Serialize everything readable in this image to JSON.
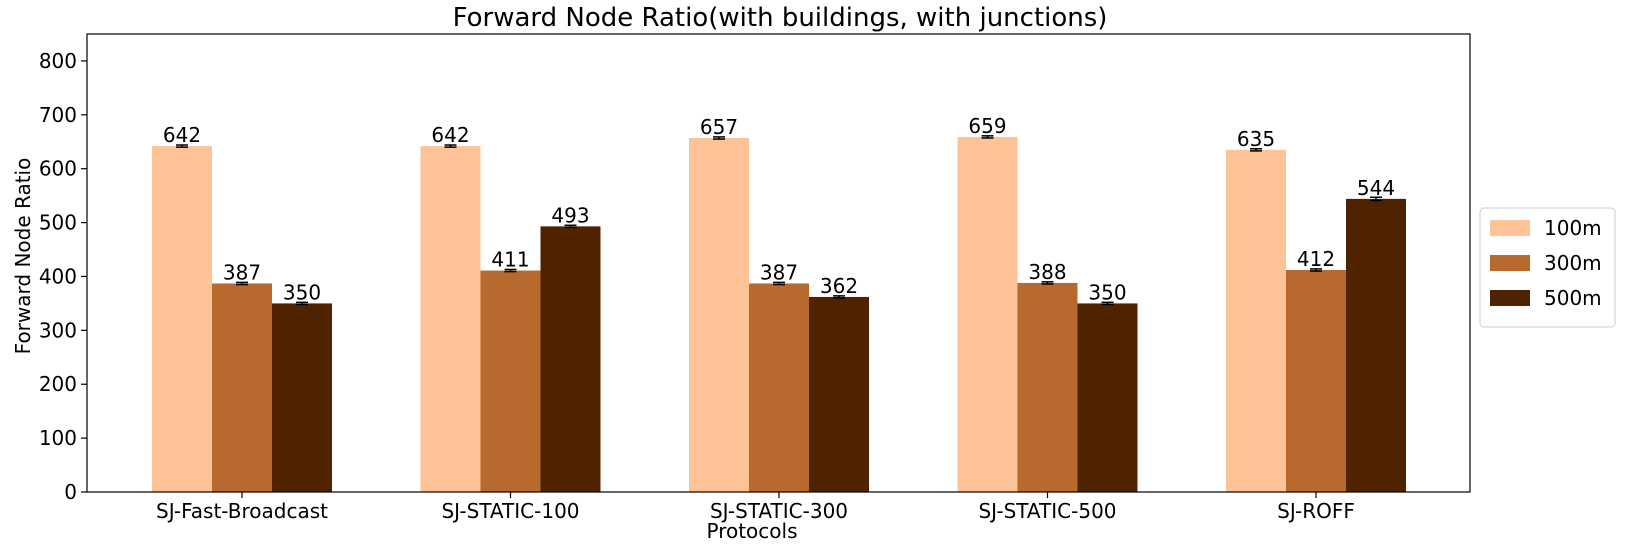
{
  "chart_data": {
    "type": "bar",
    "title": "Forward Node Ratio(with buildings, with junctions)",
    "xlabel": "Protocols",
    "ylabel": "Forward Node Ratio",
    "ylim": [
      0,
      850
    ],
    "yticks": [
      0,
      100,
      200,
      300,
      400,
      500,
      600,
      700,
      800
    ],
    "categories": [
      "SJ-Fast-Broadcast",
      "SJ-STATIC-100",
      "SJ-STATIC-300",
      "SJ-STATIC-500",
      "SJ-ROFF"
    ],
    "series": [
      {
        "name": "100m",
        "color": "#fdc396",
        "values": [
          642,
          642,
          657,
          659,
          635
        ],
        "errors": [
          2,
          2,
          2,
          2,
          2
        ]
      },
      {
        "name": "300m",
        "color": "#b8692d",
        "values": [
          387,
          411,
          387,
          388,
          412
        ],
        "errors": [
          2,
          2,
          2,
          2,
          2
        ]
      },
      {
        "name": "500m",
        "color": "#4f2200",
        "values": [
          350,
          493,
          362,
          350,
          544
        ],
        "errors": [
          2,
          2,
          2,
          2,
          3
        ]
      }
    ],
    "data_labels": true,
    "error_bars": true,
    "grid": false,
    "legend_position": "right, outside plot, vertically centered"
  }
}
